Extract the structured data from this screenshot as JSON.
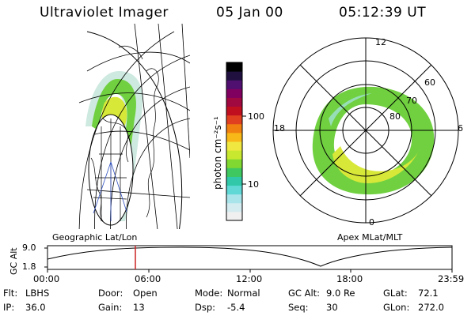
{
  "header": {
    "title": "Ultraviolet Imager",
    "date": "05 Jan 00",
    "time": "05:12:39 UT"
  },
  "colorbar": {
    "unit_label": "photon cm⁻²s⁻¹",
    "ticks": [
      "100",
      "10"
    ],
    "colors": [
      "#f0f0f0",
      "#d4ecf0",
      "#a8e4ea",
      "#5fd8d6",
      "#30c8a8",
      "#40c860",
      "#80d830",
      "#c8e830",
      "#f0e840",
      "#f8b818",
      "#f08010",
      "#e04020",
      "#c01020",
      "#a00840",
      "#800060",
      "#501070",
      "#201040",
      "#000000"
    ]
  },
  "left_map": {
    "label": "Geographic Lat/Lon"
  },
  "polar": {
    "label": "Apex  MLat/MLT",
    "mlt_labels": {
      "top": "12",
      "right": "6",
      "bottom": "0",
      "left": "18"
    },
    "lat_labels": [
      "60",
      "70",
      "80"
    ]
  },
  "altitude_plot": {
    "axis_label": "GC Alt",
    "y_ticks": [
      "9.0",
      "1.8"
    ],
    "x_ticks": [
      "00:00",
      "06:00",
      "12:00",
      "18:00",
      "23:59"
    ],
    "marker_color": "#cc2222"
  },
  "footer": {
    "row1": [
      {
        "key": "Flt:",
        "value": "LBHS"
      },
      {
        "key": "Door:",
        "value": "Open"
      },
      {
        "key": "Mode:",
        "value": "Normal"
      },
      {
        "key": "GC Alt:",
        "value": "9.0 Re"
      },
      {
        "key": "GLat:",
        "value": "72.1"
      }
    ],
    "row2": [
      {
        "key": "IP:",
        "value": "36.0"
      },
      {
        "key": "Gain:",
        "value": "13"
      },
      {
        "key": "Dsp:",
        "value": "-5.4"
      },
      {
        "key": "Seq:",
        "value": "30"
      },
      {
        "key": "GLon:",
        "value": "272.0"
      }
    ]
  }
}
